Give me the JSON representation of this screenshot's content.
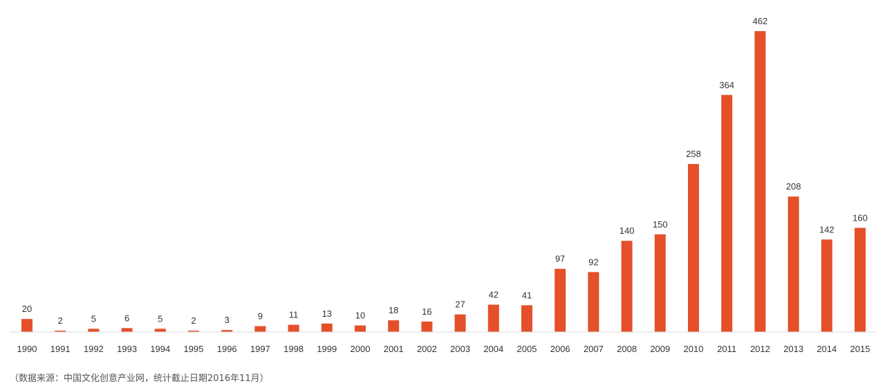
{
  "chart_data": {
    "type": "bar",
    "categories": [
      "1990",
      "1991",
      "1992",
      "1993",
      "1994",
      "1995",
      "1996",
      "1997",
      "1998",
      "1999",
      "2000",
      "2001",
      "2002",
      "2003",
      "2004",
      "2005",
      "2006",
      "2007",
      "2008",
      "2009",
      "2010",
      "2011",
      "2012",
      "2013",
      "2014",
      "2015"
    ],
    "values": [
      20,
      2,
      5,
      6,
      5,
      2,
      3,
      9,
      11,
      13,
      10,
      18,
      16,
      27,
      42,
      41,
      97,
      92,
      140,
      150,
      258,
      364,
      462,
      208,
      142,
      160
    ],
    "title": "",
    "xlabel": "",
    "ylabel": "",
    "ylim": [
      0,
      462
    ],
    "grid": false,
    "bar_color": "#e4502a",
    "axis_color": "#d9d9d9"
  },
  "source_note": "（数据来源：中国文化创意产业网，统计截止日期2016年11月）"
}
